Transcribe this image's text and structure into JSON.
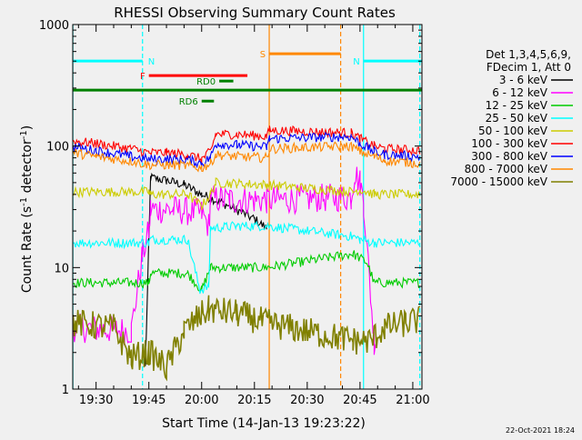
{
  "chart_data": {
    "type": "line",
    "title": "RHESSI Observing Summary Count Rates",
    "xlabel": "Start Time (14-Jan-13 19:23:22)",
    "ylabel_main": "Count Rate (s",
    "ylabel_sup1": "-1",
    "ylabel_mid": " detector",
    "ylabel_sup2": "-1",
    "ylabel_end": ")",
    "ylog": true,
    "ylim": [
      1,
      1000
    ],
    "xlim_min": [
      1163.37,
      1262.6
    ],
    "x_ticks": [
      {
        "min": 1170,
        "label": "19:30"
      },
      {
        "min": 1185,
        "label": "19:45"
      },
      {
        "min": 1200,
        "label": "20:00"
      },
      {
        "min": 1215,
        "label": "20:15"
      },
      {
        "min": 1230,
        "label": "20:30"
      },
      {
        "min": 1245,
        "label": "20:45"
      },
      {
        "min": 1260,
        "label": "21:00"
      }
    ],
    "y_ticks": [
      {
        "v": 1,
        "label": "1"
      },
      {
        "v": 10,
        "label": "10"
      },
      {
        "v": 100,
        "label": "100"
      },
      {
        "v": 1000,
        "label": "1000"
      }
    ],
    "legend_header": [
      "Det 1,3,4,5,6,9,",
      "FDecim 1, Att 0"
    ],
    "series": [
      {
        "name": "3 - 6 keV",
        "color": "#000000",
        "pts": [
          [
            1184,
            1.5
          ],
          [
            1185.5,
            55
          ],
          [
            1190,
            52
          ],
          [
            1195,
            48
          ],
          [
            1200,
            40
          ],
          [
            1205,
            35
          ],
          [
            1210,
            30
          ],
          [
            1215,
            25
          ],
          [
            1218.5,
            21
          ]
        ]
      },
      {
        "name": "6 - 12 keV",
        "color": "#ff00ff",
        "pts": [
          [
            1163.5,
            3.2
          ],
          [
            1180,
            3.0
          ],
          [
            1183,
            12
          ],
          [
            1185,
            20
          ],
          [
            1185.5,
            30
          ],
          [
            1192,
            30
          ],
          [
            1200,
            28
          ],
          [
            1202,
            22
          ],
          [
            1202.5,
            37
          ],
          [
            1208,
            36
          ],
          [
            1218.5,
            36
          ],
          [
            1242.5,
            38
          ],
          [
            1243.5,
            60
          ],
          [
            1245,
            50
          ],
          [
            1246,
            35
          ],
          [
            1249,
            2.5
          ],
          [
            1250,
            2.8
          ]
        ]
      },
      {
        "name": "12 - 25 keV",
        "color": "#00cc00",
        "pts": [
          [
            1163.5,
            7.5
          ],
          [
            1175,
            7.5
          ],
          [
            1185,
            7.5
          ],
          [
            1185.5,
            9
          ],
          [
            1196,
            9
          ],
          [
            1200,
            6.5
          ],
          [
            1202.5,
            10
          ],
          [
            1218.5,
            10
          ],
          [
            1243,
            13
          ],
          [
            1247,
            11
          ],
          [
            1249,
            7.5
          ],
          [
            1262,
            7.5
          ]
        ]
      },
      {
        "name": "25 - 50 keV",
        "color": "#00ffff",
        "pts": [
          [
            1163.5,
            16
          ],
          [
            1175,
            16
          ],
          [
            1185,
            16
          ],
          [
            1185.5,
            17
          ],
          [
            1196,
            17
          ],
          [
            1199.5,
            6.5
          ],
          [
            1202,
            7
          ],
          [
            1202.5,
            21
          ],
          [
            1210,
            22
          ],
          [
            1218.5,
            22
          ],
          [
            1243,
            18
          ],
          [
            1245,
            17
          ],
          [
            1249,
            16
          ],
          [
            1262,
            16
          ]
        ]
      },
      {
        "name": "50 - 100 keV",
        "color": "#cccc00",
        "pts": [
          [
            1163.5,
            42
          ],
          [
            1175,
            42
          ],
          [
            1185,
            42
          ],
          [
            1185.5,
            40
          ],
          [
            1196,
            40
          ],
          [
            1200,
            32
          ],
          [
            1202.5,
            40
          ],
          [
            1204,
            50
          ],
          [
            1210,
            49
          ],
          [
            1218.5,
            48
          ],
          [
            1243,
            42
          ],
          [
            1245,
            44
          ],
          [
            1249,
            40
          ],
          [
            1262,
            40
          ]
        ]
      },
      {
        "name": "100 - 300 keV",
        "color": "#ff0000",
        "pts": [
          [
            1163.5,
            110
          ],
          [
            1170,
            105
          ],
          [
            1180,
            95
          ],
          [
            1185,
            88
          ],
          [
            1190,
            88
          ],
          [
            1196,
            85
          ],
          [
            1200,
            78
          ],
          [
            1202.5,
            90
          ],
          [
            1204,
            125
          ],
          [
            1210,
            125
          ],
          [
            1218.5,
            120
          ],
          [
            1219.3,
            135
          ],
          [
            1242.5,
            128
          ],
          [
            1245,
            115
          ],
          [
            1249,
            100
          ],
          [
            1252,
            95
          ],
          [
            1262,
            92
          ]
        ]
      },
      {
        "name": "300 - 800 keV",
        "color": "#0000ff",
        "pts": [
          [
            1163.5,
            98
          ],
          [
            1170,
            92
          ],
          [
            1180,
            82
          ],
          [
            1185,
            78
          ],
          [
            1190,
            78
          ],
          [
            1196,
            77
          ],
          [
            1200,
            72
          ],
          [
            1202.5,
            80
          ],
          [
            1204,
            105
          ],
          [
            1210,
            102
          ],
          [
            1218.5,
            98
          ],
          [
            1219.3,
            115
          ],
          [
            1242.5,
            120
          ],
          [
            1245,
            105
          ],
          [
            1249,
            90
          ],
          [
            1252,
            85
          ],
          [
            1262,
            82
          ]
        ]
      },
      {
        "name": "800 - 7000 keV",
        "color": "#ff8800",
        "pts": [
          [
            1163.5,
            88
          ],
          [
            1170,
            82
          ],
          [
            1180,
            75
          ],
          [
            1185,
            70
          ],
          [
            1190,
            70
          ],
          [
            1196,
            69
          ],
          [
            1200,
            66
          ],
          [
            1202.5,
            72
          ],
          [
            1204,
            85
          ],
          [
            1210,
            82
          ],
          [
            1218.5,
            80
          ],
          [
            1219.3,
            95
          ],
          [
            1242.5,
            100
          ],
          [
            1245,
            90
          ],
          [
            1249,
            82
          ],
          [
            1252,
            76
          ],
          [
            1262,
            72
          ]
        ]
      },
      {
        "name": "7000 - 15000 keV",
        "color": "#808000",
        "pts": [
          [
            1163.5,
            3.5
          ],
          [
            1175,
            3.2
          ],
          [
            1180,
            1.8
          ],
          [
            1185,
            2.0
          ],
          [
            1190,
            1.5
          ],
          [
            1195,
            3.0
          ],
          [
            1199.5,
            4.0
          ],
          [
            1202,
            4.5
          ],
          [
            1210,
            4.2
          ],
          [
            1218.5,
            3.5
          ],
          [
            1243,
            2.5
          ],
          [
            1248,
            2.5
          ],
          [
            1252,
            3.2
          ],
          [
            1258,
            3.5
          ],
          [
            1262,
            3.7
          ]
        ]
      }
    ],
    "attenuator_bars": [
      {
        "label": "N",
        "color": "#00ffff",
        "x0": 1163.4,
        "x1": 1183.2,
        "y": 0.9
      },
      {
        "label": "N",
        "color": "#00ffff",
        "x0": 1246.0,
        "x1": 1262.6,
        "y": 0.9
      },
      {
        "label": "F",
        "color": "#ff0000",
        "x0": 1185.0,
        "x1": 1213.0,
        "y": 0.86
      },
      {
        "label": "S",
        "color": "#ff8800",
        "x0": 1219.2,
        "x1": 1239.5,
        "y": 0.92
      },
      {
        "label": "",
        "color": "#008000",
        "x0": 1163.4,
        "x1": 1262.6,
        "y": 0.82
      },
      {
        "label": "RD0",
        "color": "#008000",
        "x0": 1205.0,
        "x1": 1209.0,
        "y": 0.845
      },
      {
        "label": "RD6",
        "color": "#008000",
        "x0": 1200.0,
        "x1": 1203.5,
        "y": 0.79
      }
    ],
    "vlines": [
      {
        "x": 1163.4,
        "color": "#00ffff",
        "dash": false
      },
      {
        "x": 1183.2,
        "color": "#00ffff",
        "dash": true
      },
      {
        "x": 1246.0,
        "color": "#00ffff",
        "dash": false
      },
      {
        "x": 1262.0,
        "color": "#00ffff",
        "dash": true
      },
      {
        "x": 1219.2,
        "color": "#ff8800",
        "dash": false
      },
      {
        "x": 1239.5,
        "color": "#ff8800",
        "dash": true
      }
    ]
  },
  "footer": {
    "date": "22-Oct-2021 18:24"
  }
}
